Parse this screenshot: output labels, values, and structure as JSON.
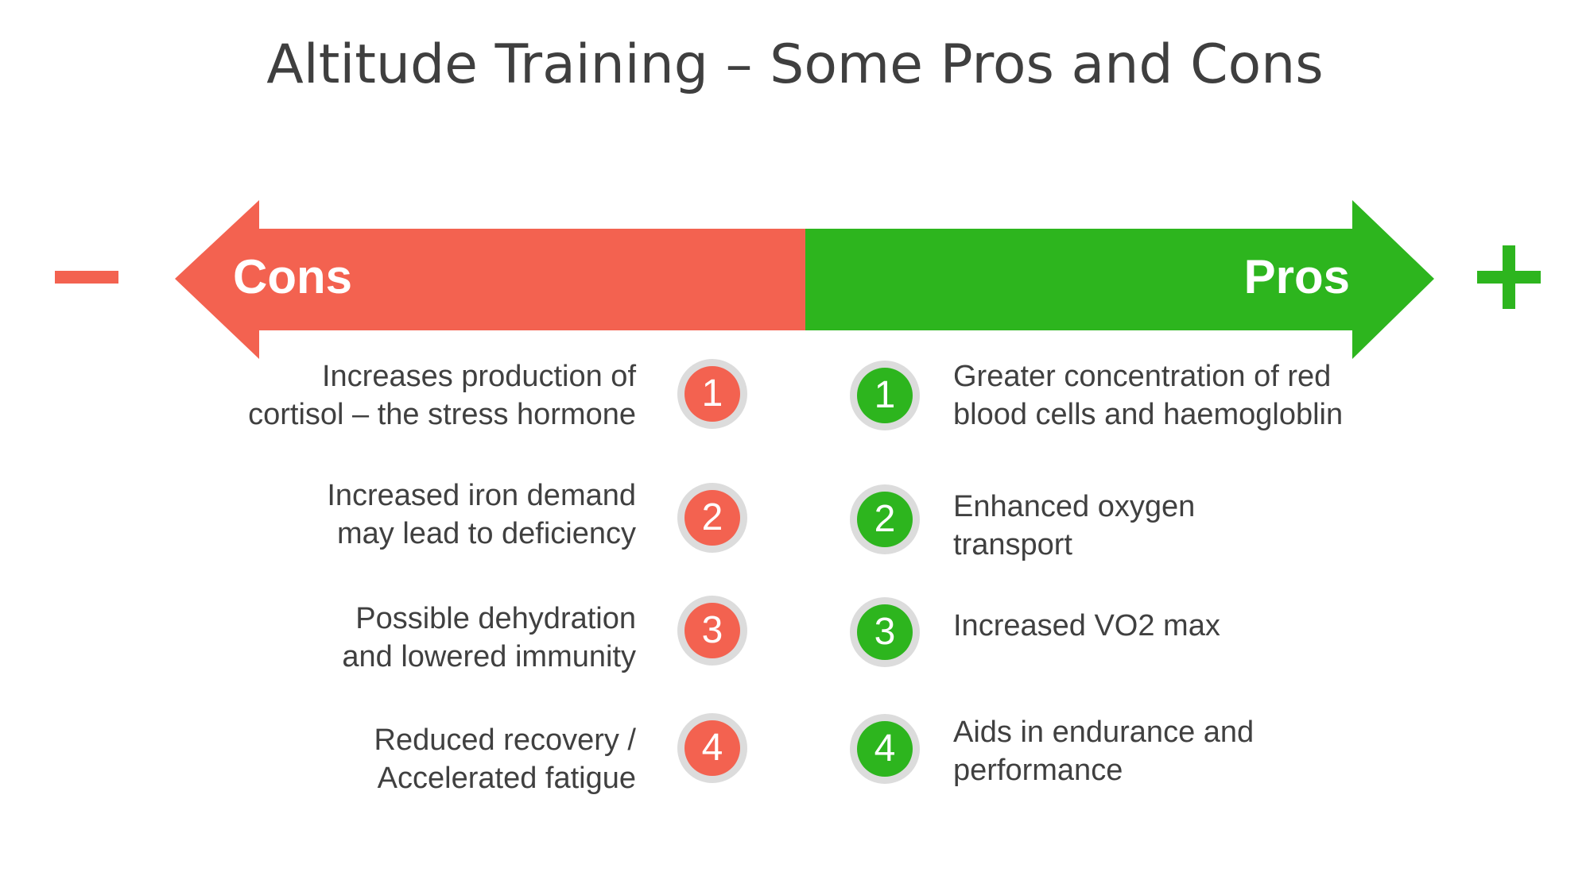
{
  "title": "Altitude Training – Some Pros and Cons",
  "colors": {
    "cons": "#f36250",
    "pros": "#2db51e",
    "badge_ring": "#dcdcdc",
    "text": "#404040"
  },
  "symbols": {
    "minus": "minus-icon",
    "plus": "plus-icon"
  },
  "arrows": {
    "cons_label": "Cons",
    "pros_label": "Pros"
  },
  "cons": [
    {
      "number": "1",
      "text": "Increases production of\ncortisol – the stress hormone"
    },
    {
      "number": "2",
      "text": "Increased iron demand\nmay lead to deficiency"
    },
    {
      "number": "3",
      "text": "Possible dehydration\nand lowered immunity"
    },
    {
      "number": "4",
      "text": "Reduced recovery /\nAccelerated fatigue"
    }
  ],
  "pros": [
    {
      "number": "1",
      "text": "Greater concentration of red\nblood cells and haemogloblin"
    },
    {
      "number": "2",
      "text": "Enhanced oxygen\ntransport"
    },
    {
      "number": "3",
      "text": "Increased VO2 max"
    },
    {
      "number": "4",
      "text": "Aids in endurance and\nperformance"
    }
  ]
}
